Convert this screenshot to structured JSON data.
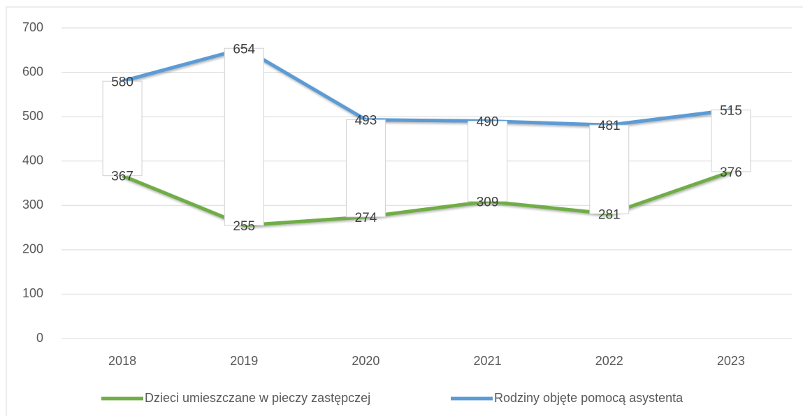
{
  "chart_data": {
    "type": "line",
    "categories": [
      "2018",
      "2019",
      "2020",
      "2021",
      "2022",
      "2023"
    ],
    "series": [
      {
        "name": "Dzieci umieszczane w pieczy zastępczej",
        "color": "#70ad47",
        "values": [
          367,
          255,
          274,
          309,
          281,
          376
        ]
      },
      {
        "name": "Rodziny objęte pomocą asystenta",
        "color": "#5b9bd5",
        "values": [
          580,
          654,
          493,
          490,
          481,
          515
        ]
      }
    ],
    "ylim": [
      0,
      700
    ],
    "yticks": [
      0,
      100,
      200,
      300,
      400,
      500,
      600,
      700
    ],
    "grid": true,
    "up_down_bars": true,
    "legend": "bottom"
  }
}
